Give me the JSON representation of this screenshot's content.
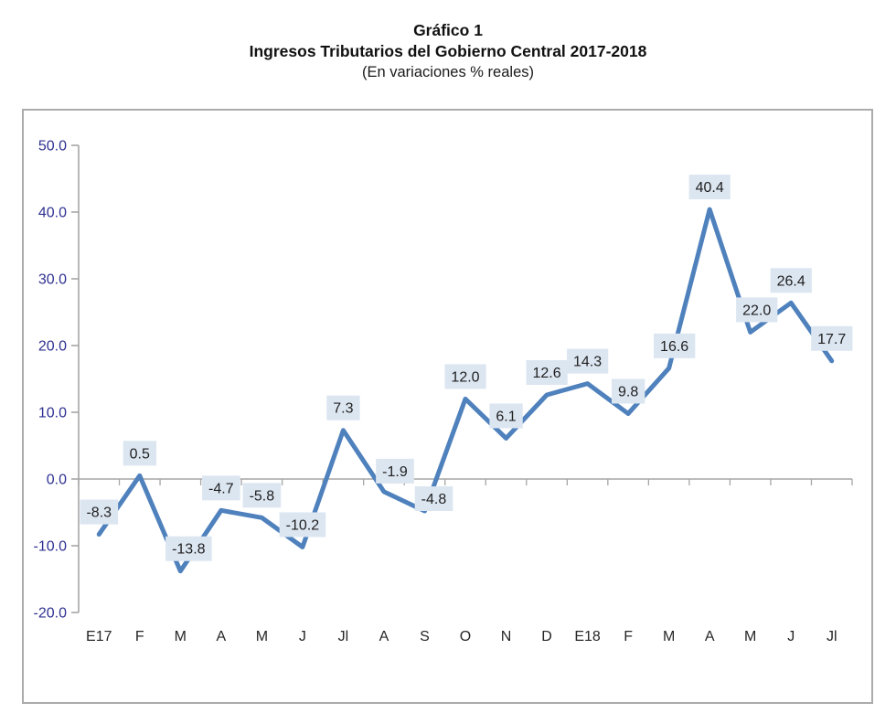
{
  "chart_data": {
    "type": "line",
    "title": "Gráfico 1",
    "subtitle": "Ingresos Tributarios del Gobierno Central 2017-2018",
    "units_note": "(En variaciones % reales)",
    "categories": [
      "E17",
      "F",
      "M",
      "A",
      "M",
      "J",
      "Jl",
      "A",
      "S",
      "O",
      "N",
      "D",
      "E18",
      "F",
      "M",
      "A",
      "M",
      "J",
      "Jl"
    ],
    "values": [
      -8.3,
      0.5,
      -13.8,
      -4.7,
      -5.8,
      -10.2,
      7.3,
      -1.9,
      -4.8,
      12.0,
      6.1,
      12.6,
      14.3,
      9.8,
      16.6,
      40.4,
      22.0,
      26.4,
      17.7
    ],
    "data_labels": [
      "-8.3",
      "0.5",
      "-13.8",
      "-4.7",
      "-5.8",
      "-10.2",
      "7.3",
      "-1.9",
      "-4.8",
      "12.0",
      "6.1",
      "12.6",
      "14.3",
      "9.8",
      "16.6",
      "40.4",
      "22.0",
      "26.4",
      "17.7"
    ],
    "ylim": [
      -20,
      50
    ],
    "ytick_step": 10,
    "ytick_labels": [
      "50.0",
      "40.0",
      "30.0",
      "20.0",
      "10.0",
      "0.0",
      "-10.0",
      "-20.0"
    ],
    "xlabel": "",
    "ylabel": "",
    "grid": false,
    "legend": "none",
    "label_offsets": {
      "2": {
        "dx": 9,
        "dy": 0
      },
      "7": {
        "dx": 12,
        "dy": 2
      },
      "8": {
        "dx": 10,
        "dy": 11
      },
      "14": {
        "dx": 6,
        "dy": 0
      },
      "16": {
        "dx": 7,
        "dy": 0
      }
    }
  },
  "colors": {
    "line": "#4F81BD",
    "label_bg": "#DCE6F1",
    "label_text": "#1F1F1F",
    "axis": "#A6A6A6",
    "zero_line": "#A6A6A6",
    "frame": "#ABABAB",
    "ytick_text": "#2E3192",
    "xtick_text": "#262626",
    "title_text": "#111111"
  }
}
